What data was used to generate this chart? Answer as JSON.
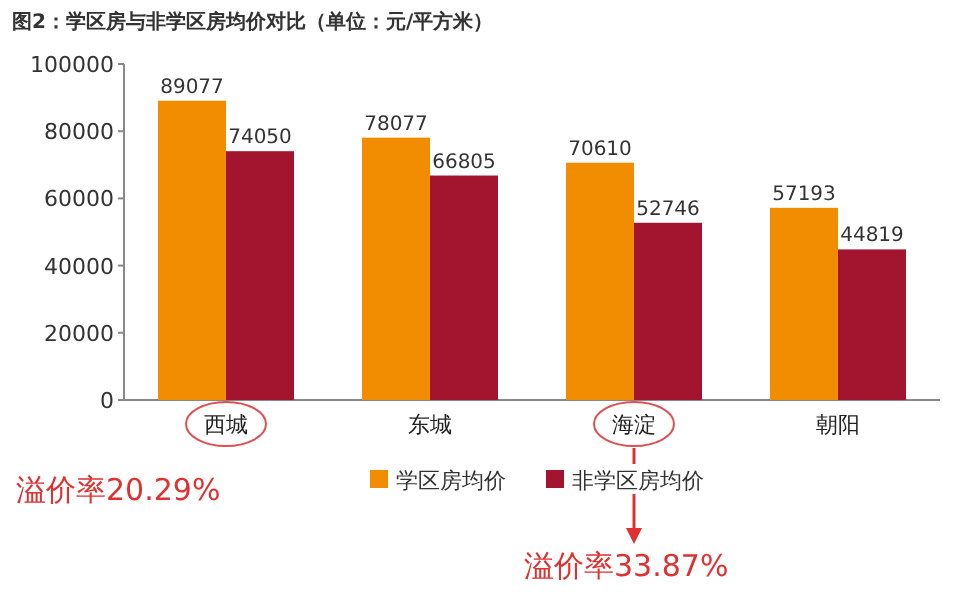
{
  "chart_data": {
    "type": "bar",
    "title": "图2：学区房与非学区房均价对比（单位：元/平方米）",
    "categories": [
      "西城",
      "东城",
      "海淀",
      "朝阳"
    ],
    "series": [
      {
        "name": "学区房均价",
        "color": "#f28c00",
        "values": [
          89077,
          78077,
          70610,
          57193
        ]
      },
      {
        "name": "非学区房均价",
        "color": "#a3142f",
        "values": [
          74050,
          66805,
          52746,
          44819
        ]
      }
    ],
    "ylim": [
      0,
      100000
    ],
    "yticks": [
      0,
      20000,
      40000,
      60000,
      80000,
      100000
    ],
    "data_labels": true,
    "legend": "bottom",
    "annotations": [
      "溢价率20.29%",
      "溢价率33.87%"
    ]
  }
}
